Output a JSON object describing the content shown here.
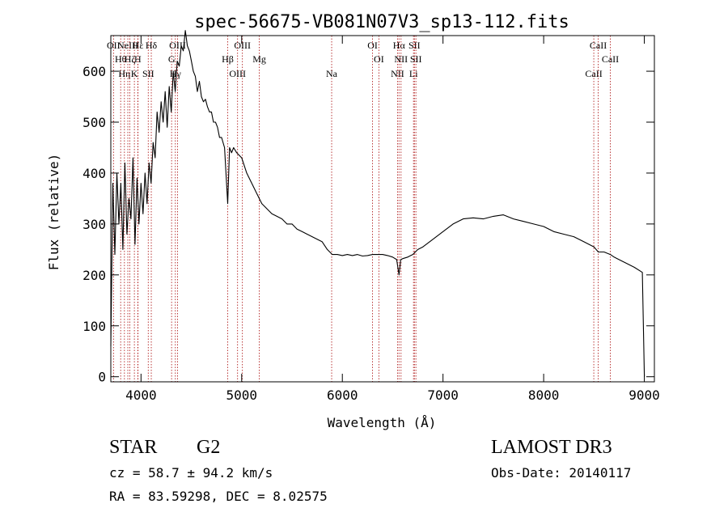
{
  "chart_data": {
    "type": "line",
    "title": "spec-56675-VB081N07V3_sp13-112.fits",
    "xlabel": "Wavelength (Å)",
    "ylabel": "Flux (relative)",
    "xlim": [
      3700,
      9100
    ],
    "ylim": [
      -10,
      670
    ],
    "xticks": [
      4000,
      5000,
      6000,
      7000,
      8000,
      9000
    ],
    "yticks": [
      0,
      100,
      200,
      300,
      400,
      500,
      600
    ],
    "grid": false,
    "line_color": "#000000",
    "marker_color": "#b22222",
    "series": [
      {
        "x": [
          3700,
          3720,
          3740,
          3760,
          3780,
          3800,
          3820,
          3840,
          3860,
          3880,
          3900,
          3920,
          3940,
          3960,
          3980,
          4000,
          4020,
          4040,
          4060,
          4080,
          4100,
          4120,
          4140,
          4160,
          4180,
          4200,
          4220,
          4240,
          4260,
          4280,
          4300,
          4320,
          4340,
          4360,
          4380,
          4400,
          4420,
          4440,
          4460,
          4480,
          4500,
          4520,
          4540,
          4560,
          4580,
          4600,
          4620,
          4640,
          4660,
          4680,
          4700,
          4720,
          4740,
          4760,
          4780,
          4800,
          4830,
          4861,
          4880,
          4900,
          4920,
          4950,
          5000,
          5050,
          5100,
          5150,
          5200,
          5250,
          5300,
          5350,
          5400,
          5450,
          5500,
          5550,
          5600,
          5650,
          5700,
          5750,
          5800,
          5850,
          5900,
          5950,
          6000,
          6050,
          6100,
          6150,
          6200,
          6250,
          6300,
          6350,
          6400,
          6450,
          6500,
          6540,
          6563,
          6580,
          6600,
          6650,
          6700,
          6750,
          6800,
          6900,
          7000,
          7100,
          7200,
          7300,
          7400,
          7500,
          7600,
          7700,
          7800,
          7900,
          8000,
          8100,
          8200,
          8300,
          8400,
          8500,
          8542,
          8600,
          8662,
          8700,
          8800,
          8900,
          8980,
          9000
        ],
        "y": [
          60,
          380,
          240,
          400,
          300,
          380,
          250,
          420,
          280,
          350,
          310,
          430,
          260,
          390,
          300,
          380,
          320,
          400,
          340,
          420,
          380,
          460,
          430,
          520,
          480,
          540,
          500,
          560,
          490,
          570,
          520,
          600,
          560,
          620,
          610,
          650,
          640,
          680,
          650,
          640,
          620,
          600,
          590,
          560,
          580,
          550,
          540,
          545,
          530,
          520,
          520,
          500,
          500,
          490,
          470,
          470,
          450,
          340,
          450,
          440,
          450,
          440,
          430,
          400,
          380,
          360,
          340,
          330,
          320,
          315,
          310,
          300,
          300,
          290,
          285,
          280,
          275,
          270,
          265,
          250,
          240,
          240,
          238,
          240,
          238,
          240,
          237,
          238,
          240,
          240,
          240,
          238,
          235,
          230,
          200,
          230,
          232,
          235,
          240,
          250,
          255,
          270,
          285,
          300,
          310,
          312,
          310,
          315,
          318,
          310,
          305,
          300,
          295,
          285,
          280,
          275,
          265,
          255,
          245,
          245,
          240,
          235,
          225,
          215,
          205,
          0
        ]
      }
    ],
    "lines": [
      {
        "x": 3727,
        "top": "OII"
      },
      {
        "x": 3798,
        "top": "Hθ"
      },
      {
        "x": 3835,
        "top": "Hη"
      },
      {
        "x": 3869,
        "top": "NeIII"
      },
      {
        "x": 3889,
        "top": "Hζ"
      },
      {
        "x": 3934,
        "top": "K"
      },
      {
        "x": 3970,
        "top": "Hε"
      },
      {
        "x": 3968,
        "top": "H"
      },
      {
        "x": 4072,
        "top": "SII"
      },
      {
        "x": 4102,
        "top": "Hδ"
      },
      {
        "x": 4304,
        "top": "G"
      },
      {
        "x": 4341,
        "top": "Hγ"
      },
      {
        "x": 4363,
        "top": "OIII"
      },
      {
        "x": 4861,
        "top": "Hβ"
      },
      {
        "x": 4959,
        "top": "OIII"
      },
      {
        "x": 5007,
        "top": "OIII"
      },
      {
        "x": 5175,
        "top": "Mg"
      },
      {
        "x": 5894,
        "top": "Na"
      },
      {
        "x": 6300,
        "top": "OI"
      },
      {
        "x": 6363,
        "top": "OI"
      },
      {
        "x": 6548,
        "top": "NII"
      },
      {
        "x": 6563,
        "top": "Hα"
      },
      {
        "x": 6583,
        "top": "NII"
      },
      {
        "x": 6707,
        "top": "Li"
      },
      {
        "x": 6716,
        "top": "SII"
      },
      {
        "x": 6731,
        "top": "SII"
      },
      {
        "x": 8498,
        "top": "CaII"
      },
      {
        "x": 8542,
        "top": "CaII"
      },
      {
        "x": 8662,
        "top": "CaII"
      }
    ]
  },
  "info": {
    "object_type": "STAR",
    "subclass": "G2",
    "survey": "LAMOST DR3",
    "cz": "cz = 58.7 ± 94.2 km/s",
    "obs_date": "Obs-Date: 20140117",
    "coords": "RA =  83.59298, DEC =   8.02575"
  }
}
